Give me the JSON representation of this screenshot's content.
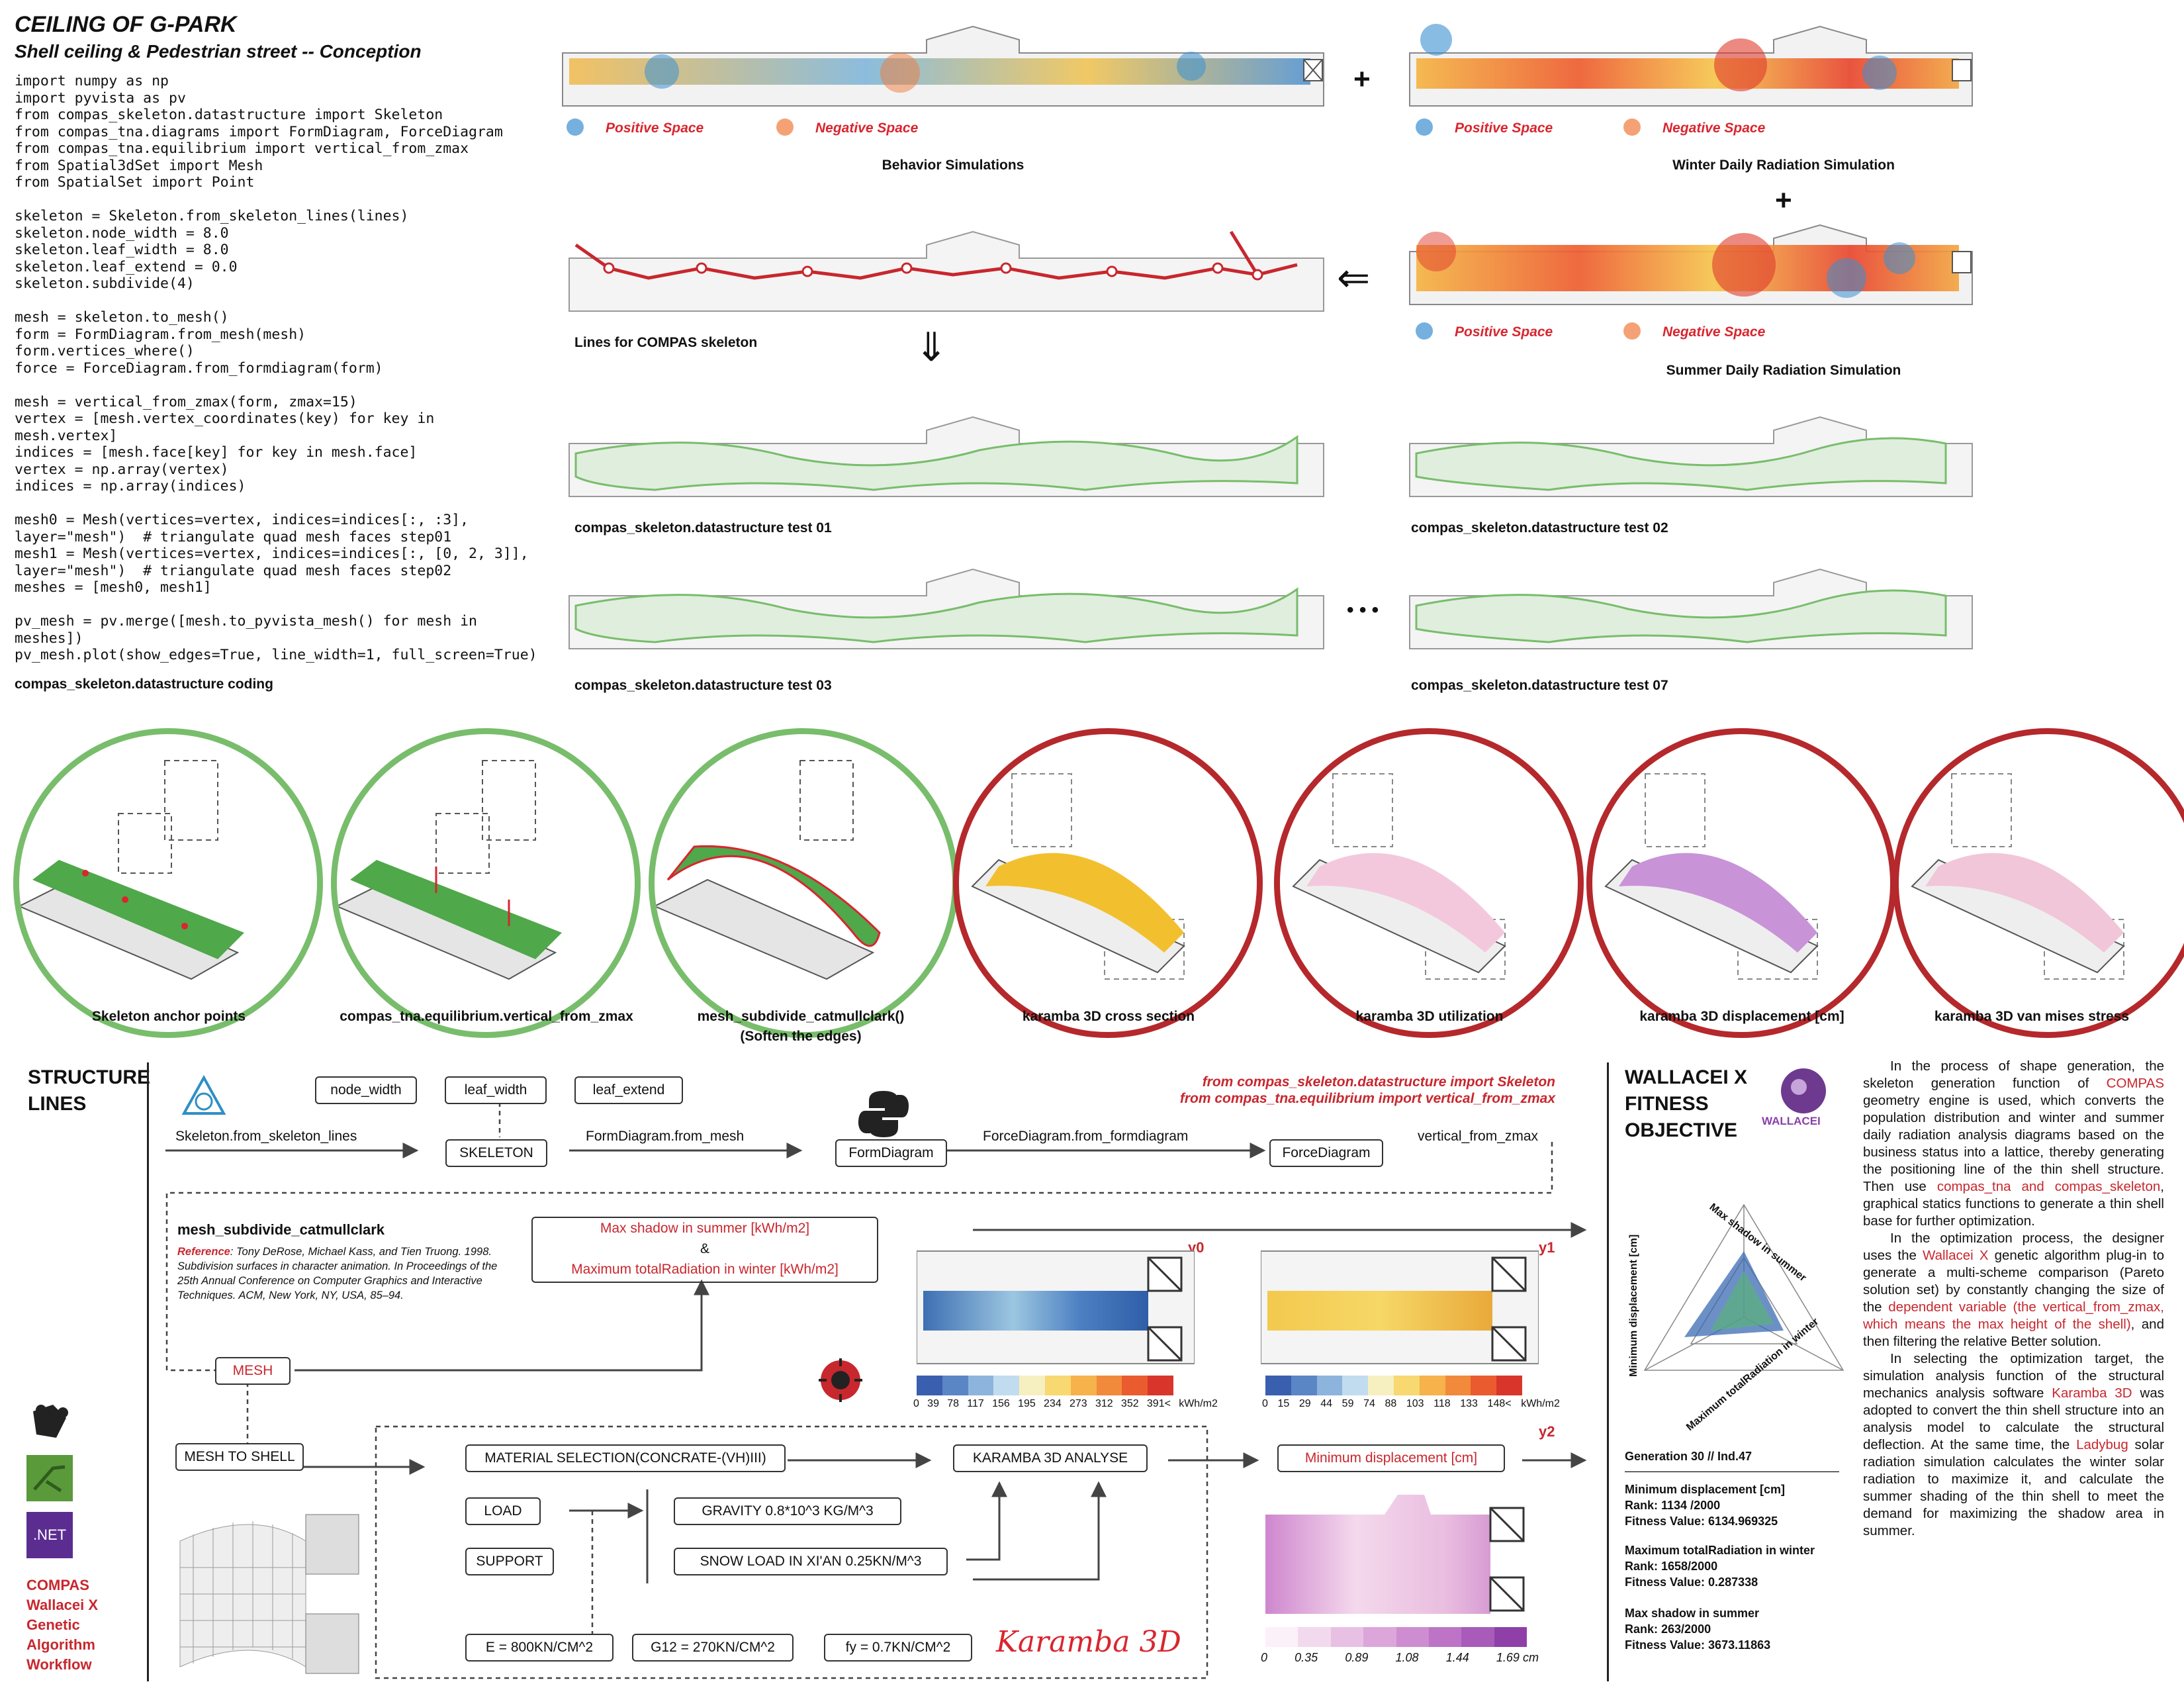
{
  "title": "CEILING OF G-PARK",
  "subtitle": "Shell ceiling & Pedestrian street -- Conception",
  "code_lines": [
    "import numpy as np",
    "import pyvista as pv",
    "from compas_skeleton.datastructure import Skeleton",
    "from compas_tna.diagrams import FormDiagram, ForceDiagram",
    "from compas_tna.equilibrium import vertical_from_zmax",
    "from Spatial3dSet import Mesh",
    "from SpatialSet import Point",
    "",
    "skeleton = Skeleton.from_skeleton_lines(lines)",
    "skeleton.node_width = 8.0",
    "skeleton.leaf_width = 8.0",
    "skeleton.leaf_extend = 0.0",
    "skeleton.subdivide(4)",
    "",
    "mesh = skeleton.to_mesh()",
    "form = FormDiagram.from_mesh(mesh)",
    "form.vertices_where()",
    "force = ForceDiagram.from_formdiagram(form)",
    "",
    "mesh = vertical_from_zmax(form, zmax=15)",
    "vertex = [mesh.vertex_coordinates(key) for key in mesh.vertex]",
    "indices = [mesh.face[key] for key in mesh.face]",
    "vertex = np.array(vertex)",
    "indices = np.array(indices)",
    "",
    "mesh0 = Mesh(vertices=vertex, indices=indices[:, :3], layer=\"mesh\")  # triangulate quad mesh faces step01",
    "mesh1 = Mesh(vertices=vertex, indices=indices[:, [0, 2, 3]], layer=\"mesh\")  # triangulate quad mesh faces step02",
    "meshes = [mesh0, mesh1]",
    "",
    "pv_mesh = pv.merge([mesh.to_pyvista_mesh() for mesh in meshes])",
    "pv_mesh.plot(show_edges=True, line_width=1, full_screen=True)"
  ],
  "code_caption": "compas_skeleton.datastructure coding",
  "plans": {
    "behavior": "Behavior Simulations",
    "winter": "Winter Daily Radiation Simulation",
    "summer": "Summer Daily Radiation Simulation",
    "lines": "Lines for COMPAS skeleton",
    "test01": "compas_skeleton.datastructure test 01",
    "test02": "compas_skeleton.datastructure test 02",
    "test03": "compas_skeleton.datastructure test 03",
    "test07": "compas_skeleton.datastructure test 07",
    "positive": "Positive Space",
    "negative": "Negative Space",
    "plus": "+",
    "arrow_left": "⇐",
    "arrow_down": "⇓",
    "ellipsis": "• • •"
  },
  "circles": [
    {
      "label": "Skeleton anchor points",
      "sub": ""
    },
    {
      "label": "compas_tna.equilibrium.vertical_from_zmax",
      "sub": ""
    },
    {
      "label": "mesh_subdivide_catmullclark()",
      "sub": "(Soften the edges)"
    },
    {
      "label": "karamba 3D cross section",
      "sub": ""
    },
    {
      "label": "karamba 3D utilization",
      "sub": ""
    },
    {
      "label": "karamba 3D displacement [cm]",
      "sub": ""
    },
    {
      "label": "karamba 3D van mises stress",
      "sub": ""
    }
  ],
  "workflow": {
    "heading_lines": [
      "STRUCTURE",
      "LINES"
    ],
    "params": [
      "node_width",
      "leaf_width",
      "leaf_extend"
    ],
    "step1": "Skeleton.from_skeleton_lines",
    "skeleton": "SKELETON",
    "step2": "FormDiagram.from_mesh",
    "form": "FormDiagram",
    "step3": "ForceDiagram.from_formdiagram",
    "force": "ForceDiagram",
    "step4": "vertical_from_zmax",
    "import1": "from compas_skeleton.datastructure import Skeleton",
    "import2": "from compas_tna.equilibrium import vertical_from_zmax",
    "subdivide_title": "mesh_subdivide_catmullclark",
    "reference_label": "Reference",
    "reference_text": ": Tony DeRose, Michael Kass, and Tien Truong. 1998. Subdivision surfaces in character animation. In Proceedings of the 25th Annual Conference on Computer Graphics and Interactive Techniques. ACM, New York, NY, USA, 85–94.",
    "mesh": "MESH",
    "objective1": "Max shadow in summer [kWh/m2]",
    "amp": "&",
    "objective2": "Maximum totalRadiation in winter [kWh/m2]",
    "y0": "y0",
    "y1": "y1",
    "y2": "y2",
    "mesh_to_shell": "MESH TO SHELL",
    "material": "MATERIAL SELECTION(CONCRATE-(VH)III)",
    "karamba_analyse": "KARAMBA 3D ANALYSE",
    "min_disp": "Minimum displacement [cm]",
    "load": "LOAD",
    "support": "SUPPORT",
    "gravity": "GRAVITY 0.8*10^3 KG/M^3",
    "snow": "SNOW LOAD IN XI'AN 0.25KN/M^3",
    "e": "E = 800KN/CM^2",
    "g12": "G12 = 270KN/CM^2",
    "fy": "fy = 0.7KN/CM^2",
    "karamba_logo": "Karamba 3D",
    "net": ".NET",
    "sidebar": [
      "COMPAS",
      "Wallacei X",
      "Genetic",
      "Algorithm",
      "Workflow"
    ],
    "scale0_ticks": [
      "0",
      "39",
      "78",
      "117",
      "156",
      "195",
      "234",
      "273",
      "312",
      "352",
      "391<",
      "kWh/m2"
    ],
    "scale1_ticks": [
      "0",
      "15",
      "29",
      "44",
      "59",
      "74",
      "88",
      "103",
      "118",
      "133",
      "148<",
      "kWh/m2"
    ],
    "scale2_ticks": [
      "0",
      "0.35",
      "0.89",
      "1.08",
      "1.44",
      "1.69 cm"
    ]
  },
  "wallacei": {
    "heading_lines": [
      "WALLACEI X",
      "FITNESS",
      "OBJECTIVE"
    ],
    "logo_text": "WALLACEI",
    "axis_top": "Max shadow in summer",
    "axis_left": "Minimum displacement [cm]",
    "axis_right": "Maximum totalRadiation in winter",
    "gen": "Generation 30 // Ind.47",
    "divider": "——————————————————",
    "blocks": [
      {
        "name": "Minimum displacement [cm]",
        "rank": "Rank: 1134 /2000",
        "fit": "Fitness Value: 6134.969325"
      },
      {
        "name": "Maximum totalRadiation in winter",
        "rank": "Rank: 1658/2000",
        "fit": "Fitness Value: 0.287338"
      },
      {
        "name": "Max shadow in summer",
        "rank": "Rank: 263/2000",
        "fit": "Fitness Value: 3673.11863"
      }
    ]
  },
  "paragraphs": {
    "p1a": "In the process of shape generation, the skeleton generation function of ",
    "p1b": "COMPAS",
    "p1c": " geometry engine is used, which converts the population distribution and winter and summer daily radiation analysis diagrams based on the business status into a lattice, thereby generating the positioning line of the thin shell structure. Then use ",
    "p1d": "compas_tna and compas_skeleton",
    "p1e": ", graphical statics functions to generate a thin shell base for further optimization.",
    "p2a": "In the optimization process, the designer uses the ",
    "p2b": "Wallacei X",
    "p2c": " genetic algorithm plug-in to generate a multi-scheme comparison (Pareto solution set) by constantly changing the size of the ",
    "p2d": "dependent variable (the vertical_from_zmax, which means the max height of the shell)",
    "p2e": ", and then filtering the relative Better solution.",
    "p3a": "In selecting the optimization target, the simulation analysis function of the structural mechanics analysis software ",
    "p3b": "Karamba 3D",
    "p3c": " was adopted to convert the thin shell structure into an analysis model to calculate the structural deflection. At the same time, the ",
    "p3d": "Ladybug",
    "p3e": " solar radiation simulation calculates the winter solar radiation to maximize it, and calculate the summer shading of the thin shell to meet the demand for maximizing the shadow area in summer."
  },
  "colors": {
    "red": "#c8272e",
    "green": "#78bd6b",
    "darkred": "#b5282b",
    "blue": "#3a8fd1",
    "orange": "#f07a3a",
    "purple": "#8a3fa8"
  }
}
